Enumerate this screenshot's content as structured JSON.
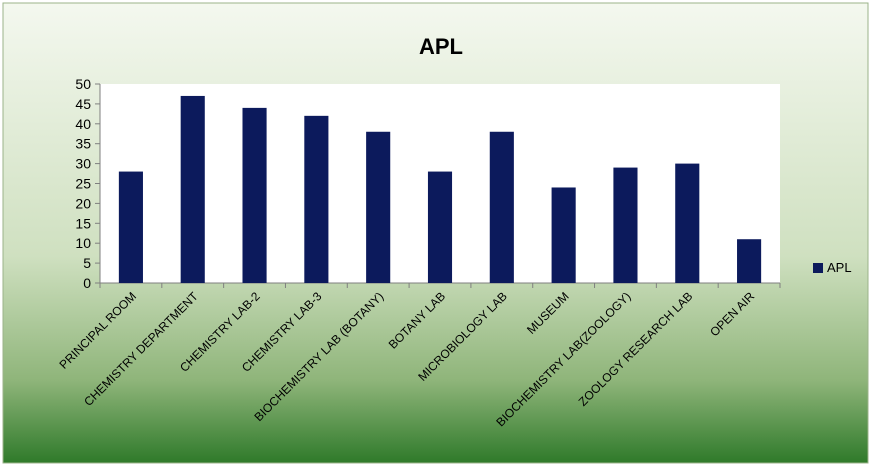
{
  "chart_data": {
    "type": "bar",
    "title": "APL",
    "categories": [
      "PRINCIPAL ROOM",
      "CHEMISTRY DEPARTMENT",
      "CHEMISTRY LAB-2",
      "CHEMISTRY LAB-3",
      "BIOCHEMISTRY LAB (BOTANY)",
      "BOTANY LAB",
      "MICROBIOLOGY LAB",
      "MUSEUM",
      "BIOCHEMISTRY LAB(ZOOLOGY)",
      "ZOOLOGY RESEARCH LAB",
      "OPEN AIR"
    ],
    "series": [
      {
        "name": "APL",
        "values": [
          28,
          47,
          44,
          42,
          38,
          28,
          38,
          24,
          29,
          30,
          11
        ],
        "color": "#0c1a5c"
      }
    ],
    "ylim": [
      0,
      50
    ],
    "yticks": [
      0,
      5,
      10,
      15,
      20,
      25,
      30,
      35,
      40,
      45,
      50
    ],
    "grid": false,
    "legend_position": "right",
    "background_colors": {
      "top": "#f4f8ef",
      "bottom": "#2f7a2a"
    }
  }
}
